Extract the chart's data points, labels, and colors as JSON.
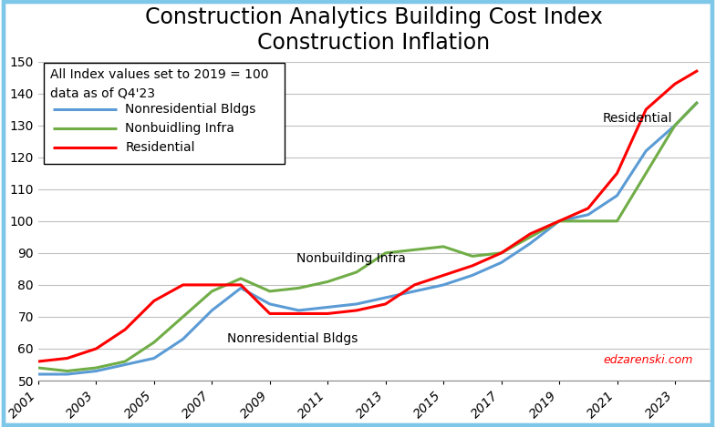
{
  "title_line1": "Construction Analytics Building Cost Index",
  "title_line2": "Construction Inflation",
  "subtitle_line1": "All Index values set to 2019 = 100",
  "subtitle_line2": "data as of Q4'23",
  "watermark": "edzarenski.com",
  "years": [
    2001,
    2002,
    2003,
    2004,
    2005,
    2006,
    2007,
    2008,
    2009,
    2010,
    2011,
    2012,
    2013,
    2014,
    2015,
    2016,
    2017,
    2018,
    2019,
    2020,
    2021,
    2022,
    2023,
    2023.75
  ],
  "nonresidential": [
    52,
    52,
    53,
    55,
    57,
    63,
    72,
    79,
    74,
    72,
    73,
    74,
    76,
    78,
    80,
    83,
    87,
    93,
    100,
    102,
    108,
    122,
    130,
    137
  ],
  "nonbuilding": [
    54,
    53,
    54,
    56,
    62,
    70,
    78,
    82,
    78,
    79,
    81,
    84,
    90,
    91,
    92,
    89,
    90,
    95,
    100,
    100,
    100,
    115,
    130,
    137
  ],
  "residential": [
    56,
    57,
    60,
    66,
    75,
    80,
    80,
    80,
    71,
    71,
    71,
    72,
    74,
    80,
    83,
    86,
    90,
    96,
    100,
    104,
    115,
    135,
    143,
    147
  ],
  "nonresidential_color": "#5b9bd5",
  "nonbuilding_color": "#70ad47",
  "residential_color": "#ff0000",
  "ylim": [
    50,
    150
  ],
  "yticks": [
    50,
    60,
    70,
    80,
    90,
    100,
    110,
    120,
    130,
    140,
    150
  ],
  "border_color": "#7dc7e8",
  "background_color": "#ffffff",
  "grid_color": "#c0c0c0",
  "legend_label_nonres": "Nonresidential Bldgs",
  "legend_label_nonbuild": "Nonbuidling Infra",
  "legend_label_res": "Residential",
  "annotation_nonbuild": "Nonbuilding Infra",
  "annotation_nonres": "Nonresidential Bldgs",
  "annotation_res": "Residential",
  "title_fontsize": 17,
  "tick_fontsize": 10,
  "legend_fontsize": 10,
  "linewidth": 2.2
}
